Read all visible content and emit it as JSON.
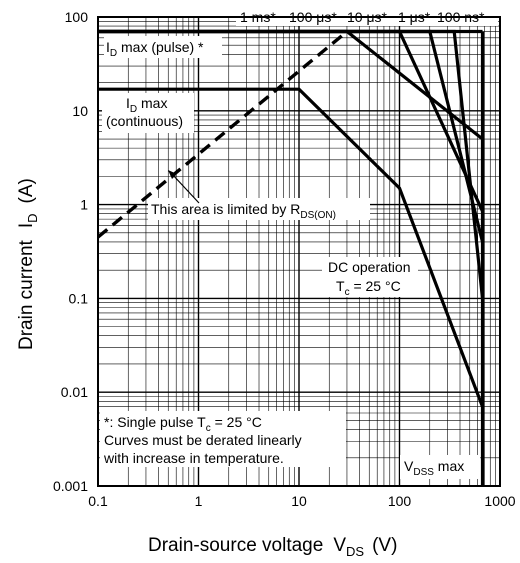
{
  "chart_data": {
    "type": "line",
    "x_scale": "log",
    "y_scale": "log",
    "xlim": [
      0.1,
      1000
    ],
    "ylim": [
      0.001,
      100
    ],
    "grid": true,
    "x_ticks": [
      "0.1",
      "1",
      "10",
      "100",
      "1000"
    ],
    "y_ticks": [
      "100",
      "10",
      "1",
      "0.1",
      "0.01",
      "0.001"
    ],
    "xlabel": {
      "main": "Drain-source voltage",
      "sym": "V",
      "sub": "DS",
      "unit": "(V)"
    },
    "ylabel": {
      "main": "Drain current",
      "sym": "I",
      "sub": "D",
      "unit": "(A)"
    },
    "series": [
      {
        "name": "1 ms*",
        "points": [
          [
            0.1,
            70
          ],
          [
            30,
            70
          ],
          [
            670,
            5
          ]
        ]
      },
      {
        "name": "100 μs*",
        "points": [
          [
            0.1,
            70
          ],
          [
            100,
            70
          ],
          [
            670,
            0.85
          ]
        ]
      },
      {
        "name": "10 μs*",
        "points": [
          [
            0.1,
            70
          ],
          [
            200,
            70
          ],
          [
            670,
            0.4
          ]
        ]
      },
      {
        "name": "1 μs*",
        "points": [
          [
            0.1,
            70
          ],
          [
            350,
            70
          ],
          [
            670,
            0.1
          ]
        ]
      },
      {
        "name": "100 ns*",
        "points": [
          [
            0.1,
            70
          ],
          [
            670,
            70
          ]
        ]
      },
      {
        "name": "DC operation",
        "points": [
          [
            0.1,
            17
          ],
          [
            10,
            17
          ],
          [
            100,
            1.5
          ],
          [
            670,
            0.007
          ]
        ]
      },
      {
        "name": "R_DS(ON) limit",
        "style": "dashed",
        "points": [
          [
            0.1,
            0.45
          ],
          [
            30,
            70
          ]
        ]
      },
      {
        "name": "V_DSS max",
        "points": [
          [
            670,
            0.001
          ],
          [
            670,
            70
          ]
        ]
      }
    ],
    "annotations": {
      "top_labels": [
        {
          "text": "1 ms*",
          "x": 30
        },
        {
          "text": "100 μs*",
          "x": 100
        },
        {
          "text": "10 μs*",
          "x": 200
        },
        {
          "text": "1 μs*",
          "x": 350
        },
        {
          "text": "100 ns*",
          "x": 670
        }
      ],
      "id_pulse": {
        "sym": "I",
        "sub": "D",
        "rest": " max (pulse) *"
      },
      "id_cont_1": {
        "sym": "I",
        "sub": "D",
        "rest": " max"
      },
      "id_cont_2": "(continuous)",
      "rds": {
        "text": "This area is limited by R",
        "sub": "DS(ON)"
      },
      "dc_1": "DC operation",
      "dc_2": {
        "sym": "T",
        "sub": "c",
        "rest": " = 25 °C"
      },
      "note_1": {
        "text": "*: Single pulse T",
        "sub": "c",
        "rest": " = 25 °C"
      },
      "note_2": "Curves must be derated linearly",
      "note_3": "with increase in temperature.",
      "vdss": {
        "sym": "V",
        "sub": "DSS",
        "rest": " max"
      }
    }
  }
}
